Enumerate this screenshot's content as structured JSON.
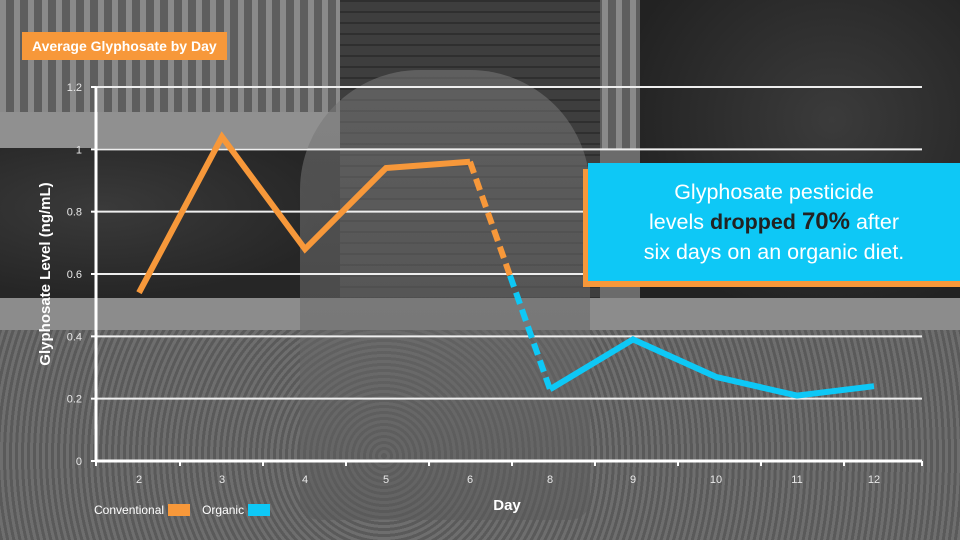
{
  "title_tag": "Average Glyphosate by Day",
  "callout": {
    "line1": "Glyphosate pesticide",
    "line2_pre": "levels",
    "line2_bold1": "dropped",
    "line2_bold2": "70%",
    "line2_post": "after",
    "line3": "six days on an organic diet."
  },
  "legend": [
    {
      "label": "Conventional",
      "color": "#f7983a"
    },
    {
      "label": "Organic",
      "color": "#0ec8f6"
    }
  ],
  "colors": {
    "conventional": "#f7983a",
    "organic": "#0ec8f6",
    "grid": "#ffffff"
  },
  "chart_data": {
    "type": "line",
    "title": "Average Glyphosate by Day",
    "xlabel": "Day",
    "ylabel": "Glyphosate Level (ng/mL)",
    "ylim": [
      0,
      1.2
    ],
    "yticks": [
      "0",
      "0.2",
      "0.4",
      "0.6",
      "0.8",
      "1",
      "1.2"
    ],
    "xticks": [
      "2",
      "3",
      "4",
      "5",
      "6",
      "8",
      "9",
      "10",
      "11",
      "12"
    ],
    "grid": true,
    "legend_position": "bottom-left",
    "series": [
      {
        "name": "Conventional",
        "x": [
          2,
          3,
          4,
          5,
          6
        ],
        "values": [
          0.54,
          1.04,
          0.68,
          0.94,
          0.96
        ]
      },
      {
        "name": "Transition (dashed)",
        "x": [
          6,
          8
        ],
        "values": [
          0.96,
          0.23
        ]
      },
      {
        "name": "Organic",
        "x": [
          8,
          9,
          10,
          11,
          12
        ],
        "values": [
          0.23,
          0.39,
          0.27,
          0.21,
          0.24
        ]
      }
    ],
    "annotations": [
      "Glyphosate pesticide levels dropped 70% after six days on an organic diet."
    ]
  }
}
